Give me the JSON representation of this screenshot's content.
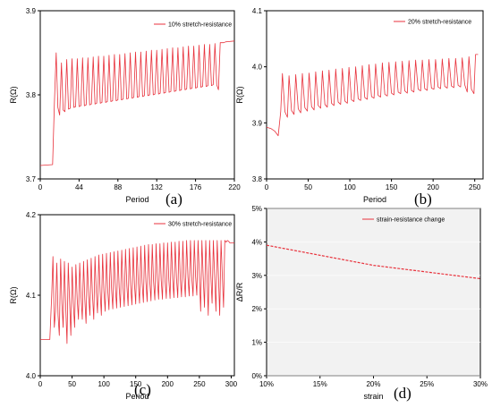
{
  "accent": "#e8323c",
  "chart_data": [
    {
      "panel": "(a)",
      "type": "line",
      "xlabel": "Period",
      "ylabel": "R(Ω)",
      "xlim": [
        0,
        220
      ],
      "ylim": [
        3.7,
        3.9
      ],
      "xticks": [
        "0",
        "44",
        "88",
        "132",
        "176",
        "220"
      ],
      "yticks": [
        "3.7",
        "3.8",
        "3.9"
      ],
      "legend": "10% stretch-resistance",
      "legend_position": "top-right",
      "series": [
        {
          "name": "10% stretch-resistance",
          "x": [
            0,
            14,
            16,
            18,
            20,
            22,
            24,
            26,
            28,
            30,
            32,
            34,
            36,
            38,
            40,
            42,
            44,
            46,
            48,
            50,
            52,
            54,
            56,
            58,
            60,
            62,
            64,
            66,
            68,
            70,
            72,
            74,
            76,
            78,
            80,
            82,
            84,
            86,
            88,
            90,
            92,
            94,
            96,
            98,
            100,
            102,
            104,
            106,
            108,
            110,
            112,
            114,
            116,
            118,
            120,
            122,
            124,
            126,
            128,
            130,
            132,
            134,
            136,
            138,
            140,
            142,
            144,
            146,
            148,
            150,
            152,
            154,
            156,
            158,
            160,
            162,
            164,
            166,
            168,
            170,
            172,
            174,
            176,
            178,
            180,
            182,
            184,
            186,
            188,
            190,
            192,
            194,
            196,
            198,
            200,
            202,
            204,
            206,
            208,
            210,
            220
          ],
          "y": [
            3.716,
            3.717,
            3.79,
            3.85,
            3.785,
            3.776,
            3.838,
            3.782,
            3.78,
            3.842,
            3.783,
            3.784,
            3.843,
            3.785,
            3.786,
            3.843,
            3.786,
            3.787,
            3.844,
            3.787,
            3.788,
            3.844,
            3.788,
            3.789,
            3.845,
            3.789,
            3.79,
            3.846,
            3.79,
            3.791,
            3.846,
            3.791,
            3.792,
            3.847,
            3.792,
            3.793,
            3.848,
            3.793,
            3.794,
            3.848,
            3.794,
            3.795,
            3.849,
            3.795,
            3.796,
            3.85,
            3.796,
            3.797,
            3.851,
            3.797,
            3.798,
            3.851,
            3.798,
            3.799,
            3.852,
            3.799,
            3.8,
            3.853,
            3.8,
            3.801,
            3.853,
            3.801,
            3.802,
            3.854,
            3.802,
            3.803,
            3.855,
            3.803,
            3.804,
            3.856,
            3.804,
            3.805,
            3.856,
            3.805,
            3.806,
            3.857,
            3.806,
            3.807,
            3.858,
            3.807,
            3.808,
            3.858,
            3.808,
            3.809,
            3.859,
            3.809,
            3.81,
            3.86,
            3.81,
            3.811,
            3.86,
            3.811,
            3.812,
            3.861,
            3.812,
            3.806,
            3.862,
            3.862,
            3.862,
            3.863,
            3.864
          ]
        }
      ]
    },
    {
      "panel": "(b)",
      "type": "line",
      "xlabel": "Period",
      "ylabel": "R(Ω)",
      "xlim": [
        0,
        260
      ],
      "ylim": [
        3.8,
        4.1
      ],
      "xticks": [
        "0",
        "50",
        "100",
        "150",
        "200",
        "250"
      ],
      "yticks": [
        "3.8",
        "3.9",
        "4.0",
        "4.1"
      ],
      "legend": "20% stretch-resistance",
      "legend_position": "top-right",
      "series": [
        {
          "name": "20% stretch-resistance",
          "x": [
            0,
            5,
            10,
            14,
            17,
            19,
            22,
            25,
            27,
            30,
            33,
            35,
            38,
            41,
            43,
            46,
            49,
            51,
            54,
            57,
            59,
            62,
            65,
            67,
            70,
            73,
            75,
            78,
            81,
            83,
            86,
            89,
            91,
            94,
            97,
            99,
            102,
            105,
            107,
            110,
            113,
            115,
            118,
            121,
            123,
            126,
            129,
            131,
            134,
            137,
            139,
            142,
            145,
            147,
            150,
            153,
            155,
            158,
            161,
            163,
            166,
            169,
            171,
            174,
            177,
            179,
            182,
            185,
            187,
            190,
            193,
            195,
            198,
            201,
            203,
            206,
            209,
            211,
            214,
            217,
            219,
            222,
            225,
            227,
            230,
            233,
            235,
            238,
            241,
            243,
            246,
            249,
            251,
            254
          ],
          "y": [
            3.892,
            3.89,
            3.885,
            3.877,
            3.92,
            3.988,
            3.92,
            3.91,
            3.984,
            3.922,
            3.915,
            3.986,
            3.925,
            3.918,
            3.988,
            3.927,
            3.921,
            3.989,
            3.929,
            3.923,
            3.991,
            3.931,
            3.926,
            3.993,
            3.933,
            3.928,
            3.994,
            3.935,
            3.931,
            3.996,
            3.937,
            3.933,
            3.997,
            3.939,
            3.935,
            3.999,
            3.941,
            3.938,
            4.0,
            3.943,
            3.94,
            4.002,
            3.945,
            3.942,
            4.004,
            3.947,
            3.944,
            4.005,
            3.949,
            3.946,
            4.007,
            3.951,
            3.948,
            4.008,
            3.953,
            3.95,
            4.009,
            3.955,
            3.952,
            4.01,
            3.957,
            3.953,
            4.011,
            3.958,
            3.955,
            4.012,
            3.96,
            3.957,
            4.012,
            3.961,
            3.958,
            4.013,
            3.962,
            3.96,
            4.013,
            3.964,
            3.961,
            4.014,
            3.965,
            3.962,
            4.015,
            3.966,
            3.963,
            4.015,
            3.967,
            3.964,
            4.016,
            3.968,
            3.955,
            4.018,
            3.96,
            3.952,
            4.022,
            4.022
          ]
        }
      ]
    },
    {
      "panel": "(c)",
      "type": "line",
      "xlabel": "Period",
      "ylabel": "R(Ω)",
      "xlim": [
        0,
        305
      ],
      "ylim": [
        4.0,
        4.2
      ],
      "xticks": [
        "0",
        "50",
        "100",
        "150",
        "200",
        "250",
        "300"
      ],
      "yticks": [
        "4.0",
        "4.1",
        "4.2"
      ],
      "legend": "30% stretch-resistance",
      "legend_position": "top-right",
      "series": [
        {
          "name": "30% stretch-resistance",
          "x": [
            0,
            15,
            18,
            20,
            22,
            24,
            26,
            28,
            30,
            32,
            34,
            36,
            38,
            40,
            42,
            44,
            46,
            48,
            50,
            52,
            54,
            56,
            58,
            60,
            62,
            64,
            66,
            68,
            70,
            72,
            74,
            76,
            78,
            80,
            82,
            84,
            86,
            88,
            90,
            92,
            94,
            96,
            98,
            100,
            102,
            104,
            106,
            108,
            110,
            112,
            114,
            116,
            118,
            120,
            122,
            124,
            126,
            128,
            130,
            132,
            134,
            136,
            138,
            140,
            142,
            144,
            146,
            148,
            150,
            152,
            154,
            156,
            158,
            160,
            162,
            164,
            166,
            168,
            170,
            172,
            174,
            176,
            178,
            180,
            182,
            184,
            186,
            188,
            190,
            192,
            194,
            196,
            198,
            200,
            202,
            204,
            206,
            208,
            210,
            212,
            214,
            216,
            218,
            220,
            222,
            224,
            226,
            228,
            230,
            232,
            234,
            236,
            238,
            240,
            242,
            244,
            246,
            248,
            250,
            252,
            254,
            256,
            258,
            260,
            262,
            264,
            266,
            268,
            270,
            272,
            274,
            276,
            278,
            280,
            282,
            284,
            286,
            288,
            290,
            292,
            294,
            296,
            298,
            300,
            305
          ],
          "y": [
            4.045,
            4.045,
            4.1,
            4.148,
            4.06,
            4.08,
            4.14,
            4.075,
            4.05,
            4.145,
            4.09,
            4.06,
            4.142,
            4.085,
            4.04,
            4.14,
            4.095,
            4.05,
            4.135,
            4.09,
            4.06,
            4.138,
            4.095,
            4.07,
            4.14,
            4.1,
            4.07,
            4.142,
            4.095,
            4.065,
            4.144,
            4.1,
            4.075,
            4.146,
            4.102,
            4.07,
            4.148,
            4.104,
            4.078,
            4.15,
            4.105,
            4.075,
            4.151,
            4.106,
            4.08,
            4.152,
            4.107,
            4.082,
            4.153,
            4.108,
            4.083,
            4.154,
            4.109,
            4.084,
            4.155,
            4.11,
            4.085,
            4.156,
            4.111,
            4.086,
            4.157,
            4.112,
            4.087,
            4.158,
            4.113,
            4.088,
            4.159,
            4.114,
            4.089,
            4.16,
            4.115,
            4.09,
            4.161,
            4.116,
            4.091,
            4.162,
            4.117,
            4.092,
            4.163,
            4.118,
            4.093,
            4.163,
            4.118,
            4.094,
            4.164,
            4.119,
            4.095,
            4.164,
            4.119,
            4.095,
            4.165,
            4.12,
            4.096,
            4.165,
            4.12,
            4.096,
            4.166,
            4.121,
            4.097,
            4.166,
            4.121,
            4.097,
            4.167,
            4.122,
            4.098,
            4.167,
            4.122,
            4.098,
            4.168,
            4.123,
            4.099,
            4.168,
            4.123,
            4.099,
            4.168,
            4.124,
            4.1,
            4.168,
            4.124,
            4.08,
            4.168,
            4.124,
            4.085,
            4.168,
            4.124,
            4.075,
            4.168,
            4.124,
            4.09,
            4.168,
            4.125,
            4.08,
            4.168,
            4.125,
            4.075,
            4.168,
            4.125,
            4.085,
            4.168,
            4.166,
            4.168,
            4.167,
            4.165,
            4.165,
            4.165
          ]
        }
      ]
    },
    {
      "panel": "(d)",
      "type": "line",
      "xlabel": "strain",
      "ylabel": "ΔR/R",
      "xlim": [
        10,
        30
      ],
      "ylim": [
        0,
        5
      ],
      "xticks": [
        "10%",
        "15%",
        "20%",
        "25%",
        "30%"
      ],
      "yticks": [
        "0%",
        "1%",
        "2%",
        "3%",
        "4%",
        "5%"
      ],
      "legend": "strain-resistance change",
      "legend_position": "top-right",
      "series": [
        {
          "name": "strain-resistance change",
          "x": [
            10,
            20,
            30
          ],
          "y": [
            3.9,
            3.3,
            2.9
          ]
        }
      ]
    }
  ]
}
